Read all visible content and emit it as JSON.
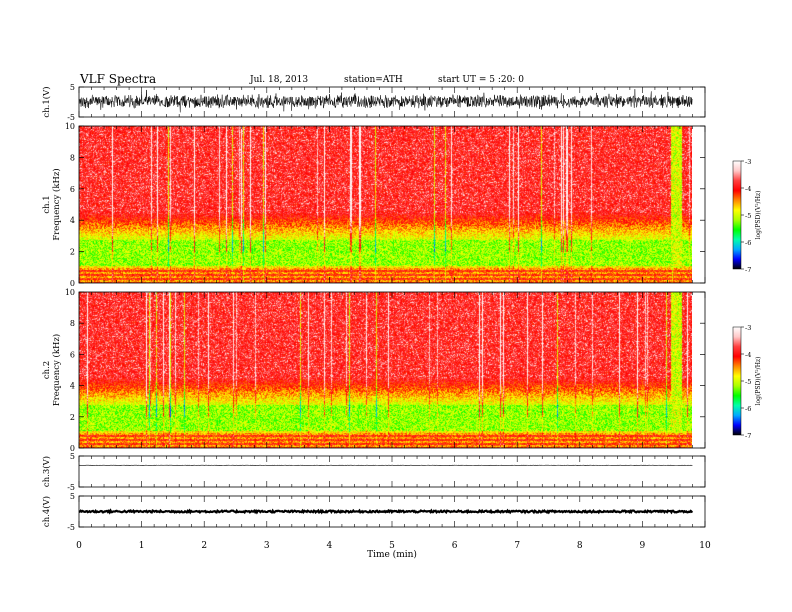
{
  "header": {
    "title": "VLF Spectra",
    "date": "Jul. 18, 2013",
    "station": "station=ATH",
    "start": "start UT =  5 :20: 0"
  },
  "chart_data": [
    {
      "id": "ch1-waveform",
      "type": "line",
      "ylabel": "ch.1(V)",
      "ylim": [
        -5,
        5
      ],
      "yticks": [
        "5",
        "-5"
      ],
      "xlim": [
        0,
        10
      ],
      "trace": {
        "mean": 0.2,
        "amplitude": 2.4,
        "duration": 9.8
      }
    },
    {
      "id": "ch1-spectrogram",
      "type": "heatmap",
      "ylabel": "ch.1\nFrequency (kHz)",
      "ylim": [
        0,
        10
      ],
      "yticks": [
        "0",
        "2",
        "4",
        "6",
        "8",
        "10"
      ],
      "xlim": [
        0,
        10
      ],
      "duration": 9.8,
      "colorbar": {
        "label": "log(PSD)(V²/Hz)",
        "range": [
          -7,
          -3
        ],
        "ticks": [
          "-3",
          "-4",
          "-5",
          "-6",
          "-7"
        ]
      }
    },
    {
      "id": "ch2-spectrogram",
      "type": "heatmap",
      "ylabel": "ch.2\nFrequency (kHz)",
      "ylim": [
        0,
        10
      ],
      "yticks": [
        "0",
        "2",
        "4",
        "6",
        "8",
        "10"
      ],
      "xlim": [
        0,
        10
      ],
      "duration": 9.8,
      "colorbar": {
        "label": "log(PSD)(V²/Hz)",
        "range": [
          -7,
          -3
        ],
        "ticks": [
          "-3",
          "-4",
          "-5",
          "-6",
          "-7"
        ]
      }
    },
    {
      "id": "ch3-waveform",
      "type": "line",
      "ylabel": "ch.3(V)",
      "ylim": [
        -5,
        5
      ],
      "yticks": [
        "5",
        "-5"
      ],
      "xlim": [
        0,
        10
      ],
      "trace": {
        "mean": 2.0,
        "amplitude": 0.05,
        "duration": 9.8
      }
    },
    {
      "id": "ch4-waveform",
      "type": "line",
      "ylabel": "ch.4(V)",
      "ylim": [
        -5,
        5
      ],
      "yticks": [
        "5",
        "-5"
      ],
      "xlim": [
        0,
        10
      ],
      "trace": {
        "mean": 0.0,
        "amplitude": 0.3,
        "duration": 9.8
      }
    }
  ],
  "xaxis": {
    "label": "Time (min)",
    "range": [
      0,
      10
    ],
    "ticks": [
      "0",
      "1",
      "2",
      "3",
      "4",
      "5",
      "6",
      "7",
      "8",
      "9",
      "10"
    ]
  },
  "colors": {
    "spectrum": [
      "#000000",
      "#0000ff",
      "#00aaff",
      "#00ffaa",
      "#00ff00",
      "#aaff00",
      "#ffff00",
      "#ff8800",
      "#ff0000",
      "#ff4040",
      "#ffc8c8",
      "#ffffff"
    ]
  }
}
